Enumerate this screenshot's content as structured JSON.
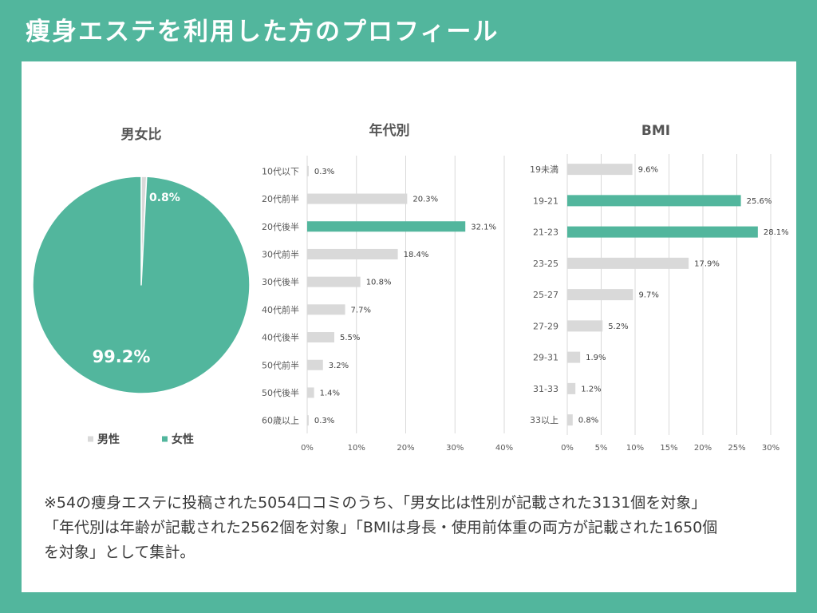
{
  "header": {
    "title": "痩身エステを利用した方のプロフィール"
  },
  "theme": {
    "background": "#52b69d",
    "panel": "#ffffff"
  },
  "chart_data": [
    {
      "type": "pie",
      "title": "男女比",
      "categories": [
        "男性",
        "女性"
      ],
      "values": [
        0.8,
        99.2
      ],
      "labels": [
        "0.8%",
        "99.2%"
      ],
      "colors": [
        "#d9d9d9",
        "#52b69d"
      ],
      "legend": "bottom"
    },
    {
      "type": "bar",
      "orientation": "horizontal",
      "title": "年代別",
      "categories": [
        "10代以下",
        "20代前半",
        "20代後半",
        "30代前半",
        "30代後半",
        "40代前半",
        "40代後半",
        "50代前半",
        "50代後半",
        "60歳以上"
      ],
      "values": [
        0.3,
        20.3,
        32.1,
        18.4,
        10.8,
        7.7,
        5.5,
        3.2,
        1.4,
        0.3
      ],
      "labels": [
        "0.3%",
        "20.3%",
        "32.1%",
        "18.4%",
        "10.8%",
        "7.7%",
        "5.5%",
        "3.2%",
        "1.4%",
        "0.3%"
      ],
      "highlight": [
        "20代後半"
      ],
      "bar_color": "#d9d9d9",
      "highlight_color": "#52b69d",
      "xlim": [
        0,
        40
      ],
      "xticks": [
        0,
        10,
        20,
        30,
        40
      ],
      "xtick_labels": [
        "0%",
        "10%",
        "20%",
        "30%",
        "40%"
      ],
      "grid": true
    },
    {
      "type": "bar",
      "orientation": "horizontal",
      "title": "BMI",
      "categories": [
        "19未満",
        "19-21",
        "21-23",
        "23-25",
        "25-27",
        "27-29",
        "29-31",
        "31-33",
        "33以上"
      ],
      "values": [
        9.6,
        25.6,
        28.1,
        17.9,
        9.7,
        5.2,
        1.9,
        1.2,
        0.8
      ],
      "labels": [
        "9.6%",
        "25.6%",
        "28.1%",
        "17.9%",
        "9.7%",
        "5.2%",
        "1.9%",
        "1.2%",
        "0.8%"
      ],
      "highlight": [
        "19-21",
        "21-23"
      ],
      "bar_color": "#d9d9d9",
      "highlight_color": "#52b69d",
      "xlim": [
        0,
        30
      ],
      "xticks": [
        0,
        5,
        10,
        15,
        20,
        25,
        30
      ],
      "xtick_labels": [
        "0%",
        "5%",
        "10%",
        "15%",
        "20%",
        "25%",
        "30%"
      ],
      "grid": true
    }
  ],
  "footnote": {
    "lines": [
      "※54の痩身エステに投稿された5054口コミのうち、「男女比は性別が記載された3131個を対象」",
      "「年代別は年齢が記載された2562個を対象」「BMIは身長・使用前体重の両方が記載された1650個",
      "を対象」として集計。"
    ]
  }
}
